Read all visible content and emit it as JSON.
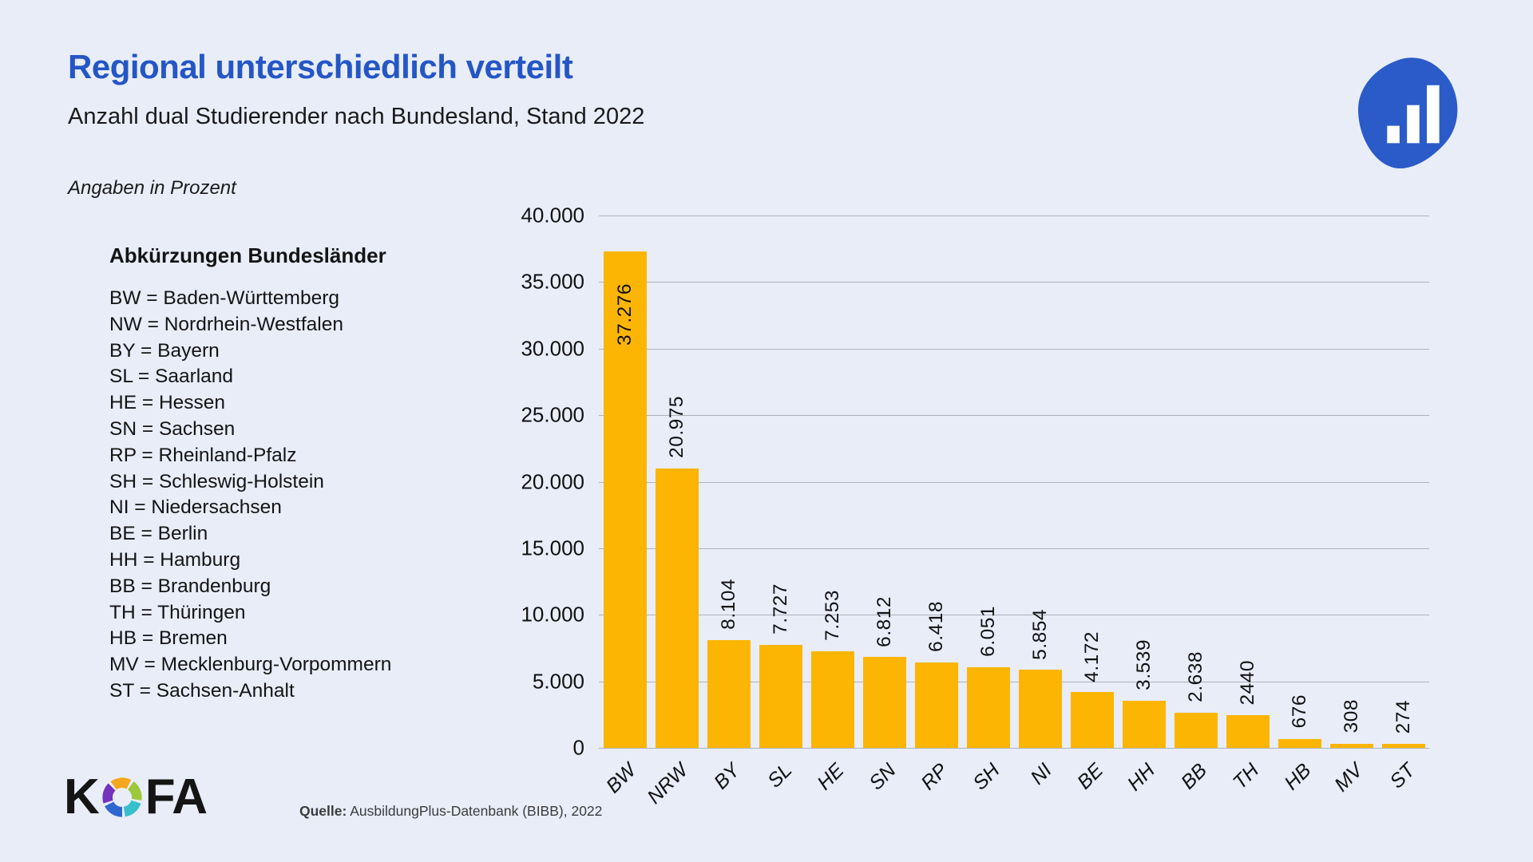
{
  "colors": {
    "background": "#E8EDF8",
    "accent_blue": "#2556C6",
    "bar_orange": "#FCB503",
    "gridline_gray": "#AEB2BB",
    "brand_blob_blue": "#2A5BC9",
    "aperture": [
      "#F6A71F",
      "#9CC83C",
      "#38BECC",
      "#2E68CE",
      "#7233BD"
    ]
  },
  "header": {
    "title": "Regional unterschiedlich verteilt",
    "subtitle": "Anzahl dual Studierender nach Bundesland, Stand 2022",
    "note": "Angaben in Prozent"
  },
  "legend": {
    "heading": "Abkürzungen Bundesländer",
    "items": [
      "BW = Baden-Württemberg",
      "NW = Nordrhein-Westfalen",
      "BY = Bayern",
      "SL = Saarland",
      "HE = Hessen",
      "SN = Sachsen",
      "RP = Rheinland-Pfalz",
      "SH = Schleswig-Holstein",
      "NI = Niedersachsen",
      "BE = Berlin",
      "HH = Hamburg",
      "BB = Brandenburg",
      "TH = Thüringen",
      "HB = Bremen",
      "MV = Mecklenburg-Vorpommern",
      "ST = Sachsen-Anhalt"
    ]
  },
  "chart_data": {
    "type": "bar",
    "title": "Anzahl dual Studierender nach Bundesland, Stand 2022",
    "categories": [
      "BW",
      "NRW",
      "BY",
      "SL",
      "HE",
      "SN",
      "RP",
      "SH",
      "NI",
      "BE",
      "HH",
      "BB",
      "TH",
      "HB",
      "MV",
      "ST"
    ],
    "values": [
      37276,
      20975,
      8104,
      7727,
      7253,
      6812,
      6418,
      6051,
      5854,
      4172,
      3539,
      2638,
      2440,
      676,
      308,
      274
    ],
    "value_labels": [
      "37.276",
      "20.975",
      "8.104",
      "7.727",
      "7.253",
      "6.812",
      "6.418",
      "6.051",
      "5.854",
      "4.172",
      "3.539",
      "2.638",
      "2440",
      "676",
      "308",
      "274"
    ],
    "y_ticks": [
      "40.000",
      "35.000",
      "30.000",
      "25.000",
      "20.000",
      "15.000",
      "10.000",
      "5.000",
      "0"
    ],
    "ylim": [
      0,
      40000
    ],
    "xlabel": "",
    "ylabel": "",
    "grid": true,
    "legend_position": "none",
    "bar_color": "#FCB503",
    "value_label_rotation": 90,
    "x_tick_rotation": 45
  },
  "footer": {
    "logo_k": "K",
    "logo_fa": "FA",
    "source_label": "Quelle:",
    "source_text": " AusbildungPlus-Datenbank (BIBB), 2022"
  }
}
